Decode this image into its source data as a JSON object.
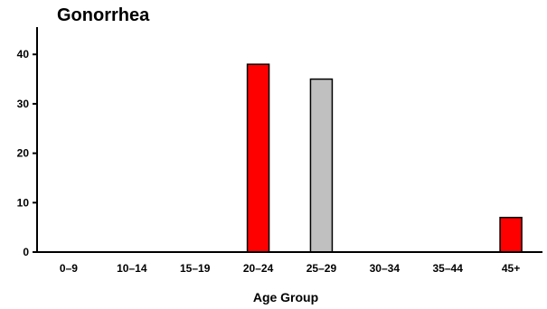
{
  "chart_data": {
    "type": "bar",
    "title": "Gonorrhea",
    "xlabel": "Age Group",
    "ylabel": "",
    "categories": [
      "0–9",
      "10–14",
      "15–19",
      "20–24",
      "25–29",
      "30–34",
      "35–44",
      "45+"
    ],
    "values": [
      0,
      0,
      0,
      38,
      35,
      0,
      0,
      7
    ],
    "bar_colors": [
      "#ff0000",
      "#ff0000",
      "#ff0000",
      "#ff0000",
      "#c0c0c0",
      "#ff0000",
      "#ff0000",
      "#ff0000"
    ],
    "yticks": [
      0,
      10,
      20,
      30,
      40
    ],
    "ylim": [
      0,
      45
    ],
    "grid": false,
    "legend": "none"
  }
}
